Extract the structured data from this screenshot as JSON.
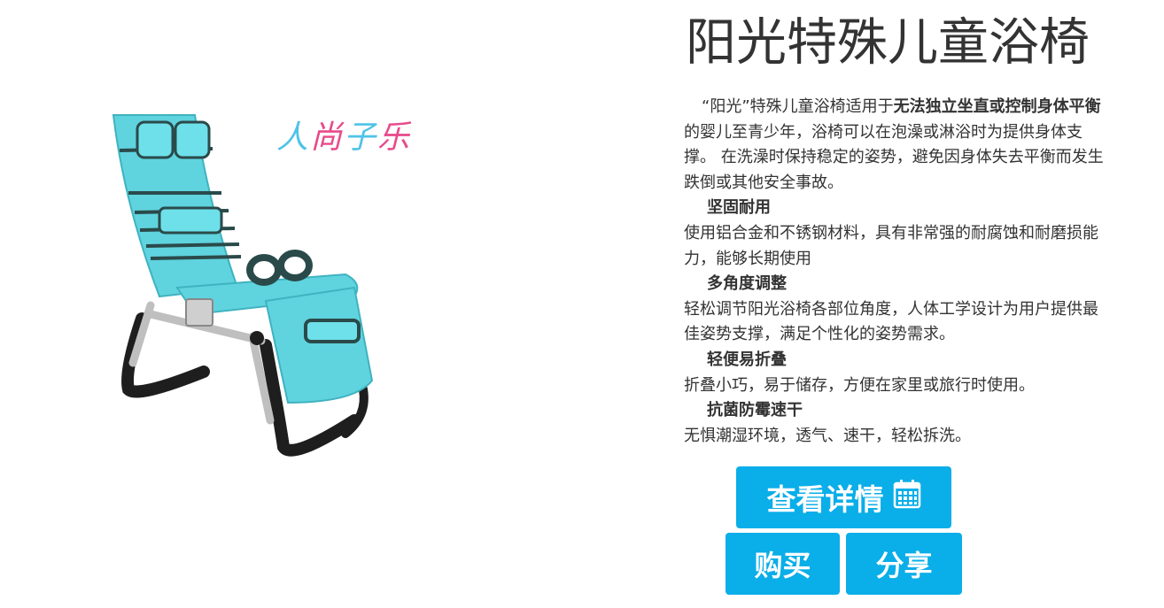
{
  "product": {
    "title": "阳光特殊儿童浴椅",
    "image_alt": "阳光特殊儿童浴椅 product photo",
    "brand_logo_text": [
      "人",
      "尚",
      "子",
      "乐"
    ]
  },
  "description": {
    "intro_quote": "“阳光”特殊儿童浴椅适用于",
    "intro_bold": "无法独立坐直或控制身体平衡",
    "intro_rest": "的婴儿至青少年，浴椅可以在泡澡或淋浴时为提供身体支撑。 在洗澡时保持稳定的姿势，避免因身体失去平衡而发生跌倒或其他安全事故。",
    "features": [
      {
        "heading": "坚固耐用",
        "text": "使用铝合金和不锈钢材料，具有非常强的耐腐蚀和耐磨损能力，能够长期使用"
      },
      {
        "heading": "多角度调整",
        "text": "轻松调节阳光浴椅各部位角度，人体工学设计为用户提供最佳姿势支撑，满足个性化的姿势需求。"
      },
      {
        "heading": "轻便易折叠",
        "text": "折叠小巧，易于储存，方便在家里或旅行时使用。"
      },
      {
        "heading": "抗菌防霉速干",
        "text": "无惧潮湿环境，透气、速干，轻松拆洗。"
      }
    ]
  },
  "buttons": {
    "details_label": "查看详情",
    "details_icon": "calendar-icon",
    "buy_label": "购买",
    "share_label": "分享"
  },
  "colors": {
    "accent": "#0aaee8",
    "text": "#333333",
    "chair_fabric": "#5fd3de",
    "logo_blue": "#4fc3e8",
    "logo_pink": "#e84a8a"
  }
}
